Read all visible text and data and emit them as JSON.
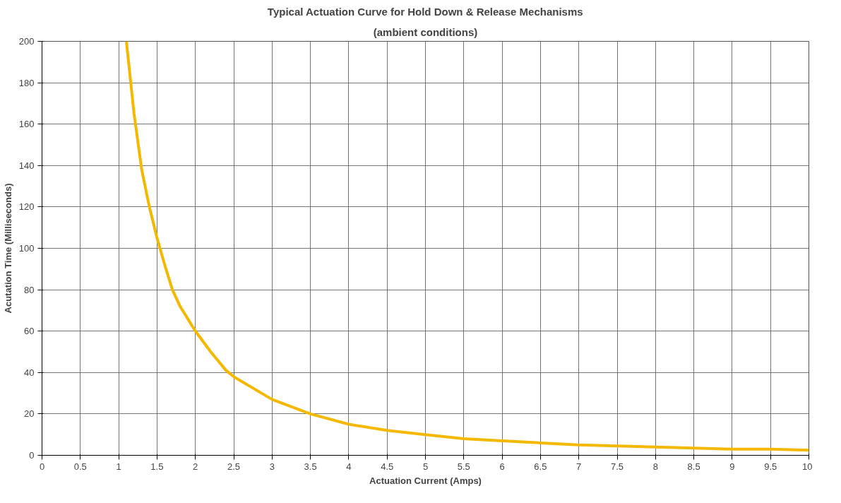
{
  "chart_data": {
    "type": "line",
    "title": "Typical Actuation Curve for Hold Down & Release Mechanisms",
    "subtitle": "(ambient conditions)",
    "xlabel": "Actuation Current (Amps)",
    "ylabel": "Acutation Time (Milliseconds)",
    "x": [
      1.1,
      1.2,
      1.3,
      1.4,
      1.5,
      1.6,
      1.7,
      1.8,
      1.9,
      2,
      2.2,
      2.4,
      2.5,
      3,
      3.5,
      4,
      4.5,
      5,
      5.5,
      6,
      6.5,
      7,
      7.5,
      8,
      8.5,
      9,
      9.5,
      10
    ],
    "series": [
      {
        "color": "#f5b800",
        "values": [
          200,
          165,
          138,
          120,
          105,
          92,
          80,
          72,
          66,
          60,
          50,
          41,
          38,
          27,
          20,
          15,
          12,
          10,
          8,
          7,
          6,
          5,
          4.5,
          4,
          3.5,
          3,
          3,
          2.5
        ]
      }
    ],
    "xlim": [
      0,
      10
    ],
    "xticks": [
      0,
      0.5,
      1,
      1.5,
      2,
      2.5,
      3,
      3.5,
      4,
      4.5,
      5,
      5.5,
      6,
      6.5,
      7,
      7.5,
      8,
      8.5,
      9,
      9.5,
      10
    ],
    "ylim": [
      0,
      200
    ],
    "yticks": [
      0,
      20,
      40,
      60,
      80,
      100,
      120,
      140,
      160,
      180,
      200
    ],
    "grid": true,
    "marker": "none",
    "line_style": "solid"
  }
}
